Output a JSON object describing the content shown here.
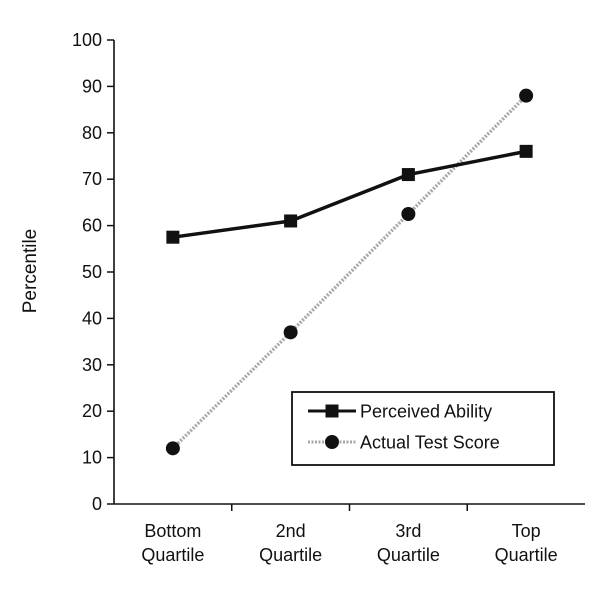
{
  "chart_data": {
    "type": "line",
    "categories": [
      [
        "Bottom",
        "Quartile"
      ],
      [
        "2nd",
        "Quartile"
      ],
      [
        "3rd",
        "Quartile"
      ],
      [
        "Top",
        "Quartile"
      ]
    ],
    "ylabel": "Percentile",
    "xlabel": "",
    "title": "",
    "ylim": [
      0,
      100
    ],
    "yticks": [
      0,
      10,
      20,
      30,
      40,
      50,
      60,
      70,
      80,
      90,
      100
    ],
    "grid": false,
    "legend": "bottom-right",
    "series": [
      {
        "name": "Perceived Ability",
        "values": [
          57.5,
          61,
          71,
          76
        ],
        "marker": "square",
        "line": "solid",
        "color": "#111111"
      },
      {
        "name": "Actual Test Score",
        "values": [
          12,
          37,
          62.5,
          88
        ],
        "marker": "circle",
        "line": "dotted",
        "color": "#111111",
        "line_color": "#a8a8a8"
      }
    ]
  }
}
